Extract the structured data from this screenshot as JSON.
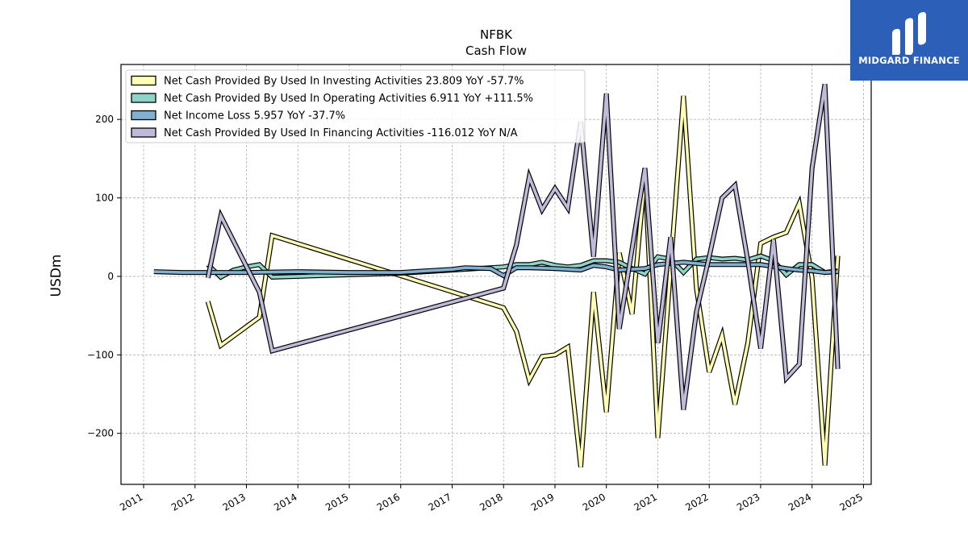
{
  "chart_data": {
    "type": "line",
    "title": "NFBK",
    "subtitle": "Cash Flow",
    "xlabel": "",
    "ylabel": "USDm",
    "xlim": [
      2010.56,
      2025.15
    ],
    "ylim": [
      -265,
      270
    ],
    "grid": true,
    "legend_position": "top-left",
    "x_ticks": [
      "2011",
      "2012",
      "2013",
      "2014",
      "2015",
      "2016",
      "2017",
      "2018",
      "2019",
      "2020",
      "2021",
      "2022",
      "2023",
      "2024",
      "2025"
    ],
    "y_ticks": [
      -200,
      -100,
      0,
      100,
      200
    ],
    "series": [
      {
        "name": "Net Cash Provided By Used In Investing Activities",
        "legend_label": "Net Cash Provided By Used In Investing Activities  23.809 YoY -57.7%",
        "color": "#ffffb3",
        "points": [
          [
            2012.25,
            -32
          ],
          [
            2012.5,
            -88
          ],
          [
            2013.25,
            -52
          ],
          [
            2013.5,
            52
          ],
          [
            2018.0,
            -40
          ],
          [
            2018.25,
            -70
          ],
          [
            2018.5,
            -132
          ],
          [
            2018.75,
            -102
          ],
          [
            2019.0,
            -100
          ],
          [
            2019.25,
            -90
          ],
          [
            2019.5,
            -243
          ],
          [
            2019.75,
            -20
          ],
          [
            2020.0,
            -173
          ],
          [
            2020.25,
            30
          ],
          [
            2020.5,
            -48
          ],
          [
            2020.75,
            130
          ],
          [
            2021.0,
            -206
          ],
          [
            2021.5,
            230
          ],
          [
            2021.75,
            -15
          ],
          [
            2022.0,
            -122
          ],
          [
            2022.25,
            -75
          ],
          [
            2022.5,
            -163
          ],
          [
            2022.75,
            -85
          ],
          [
            2023.0,
            42
          ],
          [
            2023.25,
            50
          ],
          [
            2023.5,
            56
          ],
          [
            2023.75,
            93
          ],
          [
            2024.0,
            -2
          ],
          [
            2024.25,
            -241
          ],
          [
            2024.5,
            26
          ]
        ]
      },
      {
        "name": "Net Cash Provided By Used In Operating Activities",
        "legend_label": "Net Cash Provided By Used In Operating Activities  6.911 YoY +111.5%",
        "color": "#8dd3c7",
        "points": [
          [
            2012.25,
            15
          ],
          [
            2012.5,
            -1
          ],
          [
            2012.75,
            8
          ],
          [
            2013.0,
            12
          ],
          [
            2013.25,
            15
          ],
          [
            2013.5,
            -1
          ],
          [
            2016.0,
            4
          ],
          [
            2017.0,
            8
          ],
          [
            2018.0,
            12
          ],
          [
            2018.25,
            15
          ],
          [
            2018.5,
            15
          ],
          [
            2018.75,
            18
          ],
          [
            2019.0,
            14
          ],
          [
            2019.25,
            12
          ],
          [
            2019.5,
            14
          ],
          [
            2019.75,
            20
          ],
          [
            2020.0,
            20
          ],
          [
            2020.25,
            18
          ],
          [
            2020.5,
            10
          ],
          [
            2020.75,
            3
          ],
          [
            2021.0,
            25
          ],
          [
            2021.25,
            22
          ],
          [
            2021.5,
            5
          ],
          [
            2021.75,
            22
          ],
          [
            2022.0,
            24
          ],
          [
            2022.25,
            22
          ],
          [
            2022.5,
            23
          ],
          [
            2022.75,
            21
          ],
          [
            2023.0,
            26
          ],
          [
            2023.25,
            20
          ],
          [
            2023.5,
            2
          ],
          [
            2023.75,
            15
          ],
          [
            2024.0,
            15
          ],
          [
            2024.25,
            5
          ],
          [
            2024.5,
            7
          ]
        ]
      },
      {
        "name": "Net Income Loss",
        "legend_label": "Net Income Loss  5.957 YoY -37.7%",
        "color": "#80b1d3",
        "points": [
          [
            2011.2,
            6
          ],
          [
            2011.75,
            5
          ],
          [
            2012.25,
            5
          ],
          [
            2013.0,
            5
          ],
          [
            2014.0,
            6
          ],
          [
            2015.0,
            5
          ],
          [
            2016.0,
            5
          ],
          [
            2016.5,
            7
          ],
          [
            2017.0,
            9
          ],
          [
            2017.25,
            11
          ],
          [
            2017.75,
            10
          ],
          [
            2018.0,
            1
          ],
          [
            2018.25,
            11
          ],
          [
            2018.5,
            11
          ],
          [
            2019.0,
            10
          ],
          [
            2019.5,
            8
          ],
          [
            2019.75,
            14
          ],
          [
            2020.0,
            12
          ],
          [
            2020.25,
            8
          ],
          [
            2020.75,
            10
          ],
          [
            2021.0,
            15
          ],
          [
            2021.5,
            18
          ],
          [
            2022.0,
            15
          ],
          [
            2022.5,
            15
          ],
          [
            2023.0,
            15
          ],
          [
            2023.5,
            10
          ],
          [
            2023.75,
            8
          ],
          [
            2024.0,
            7
          ],
          [
            2024.25,
            5
          ],
          [
            2024.5,
            6
          ]
        ]
      },
      {
        "name": "Net Cash Provided By Used In Financing Activities",
        "legend_label": "Net Cash Provided By Used In Financing Activities  -116.012 YoY N/A",
        "color": "#bebada",
        "points": [
          [
            2012.25,
            -2
          ],
          [
            2012.5,
            77
          ],
          [
            2013.25,
            -20
          ],
          [
            2013.5,
            -95
          ],
          [
            2018.0,
            -15
          ],
          [
            2018.25,
            40
          ],
          [
            2018.5,
            127
          ],
          [
            2018.75,
            85
          ],
          [
            2019.0,
            112
          ],
          [
            2019.25,
            87
          ],
          [
            2019.5,
            197
          ],
          [
            2019.75,
            25
          ],
          [
            2020.0,
            233
          ],
          [
            2020.25,
            -67
          ],
          [
            2020.75,
            138
          ],
          [
            2021.0,
            -85
          ],
          [
            2021.25,
            50
          ],
          [
            2021.5,
            -170
          ],
          [
            2021.75,
            -45
          ],
          [
            2022.0,
            25
          ],
          [
            2022.25,
            100
          ],
          [
            2022.5,
            116
          ],
          [
            2022.75,
            20
          ],
          [
            2023.0,
            -92
          ],
          [
            2023.25,
            47
          ],
          [
            2023.5,
            -130
          ],
          [
            2023.75,
            -112
          ],
          [
            2024.0,
            138
          ],
          [
            2024.25,
            245
          ],
          [
            2024.5,
            -118
          ]
        ]
      }
    ]
  },
  "logo": {
    "name": "MIDGARD FINANCE"
  }
}
